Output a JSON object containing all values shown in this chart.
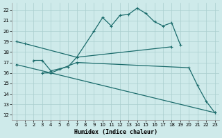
{
  "xlabel": "Humidex (Indice chaleur)",
  "xlim": [
    -0.5,
    23.5
  ],
  "ylim": [
    11.5,
    22.7
  ],
  "yticks": [
    12,
    13,
    14,
    15,
    16,
    17,
    18,
    19,
    20,
    21,
    22
  ],
  "xticks": [
    0,
    1,
    2,
    3,
    4,
    5,
    6,
    7,
    8,
    9,
    10,
    11,
    12,
    13,
    14,
    15,
    16,
    17,
    18,
    19,
    20,
    21,
    22,
    23
  ],
  "bg_color": "#ceeaea",
  "grid_color": "#aacece",
  "line_color": "#1a6b6b",
  "series1_x": [
    0,
    1,
    7,
    9,
    10,
    11,
    12,
    13,
    14,
    15,
    16,
    17,
    18,
    19
  ],
  "series1_y": [
    19.0,
    18.8,
    17.5,
    20.0,
    21.3,
    20.5,
    21.5,
    21.6,
    22.2,
    21.7,
    20.9,
    20.5,
    20.8,
    18.7
  ],
  "series2_x": [
    2,
    3,
    4,
    5,
    6,
    7,
    18
  ],
  "series2_y": [
    17.2,
    17.2,
    16.2,
    16.4,
    16.6,
    17.5,
    18.5
  ],
  "series3_x": [
    3,
    4,
    7,
    20,
    21,
    22,
    23
  ],
  "series3_y": [
    16.0,
    16.0,
    17.0,
    16.5,
    14.8,
    13.3,
    12.2
  ],
  "series4_x": [
    0,
    23
  ],
  "series4_y": [
    16.8,
    12.2
  ]
}
